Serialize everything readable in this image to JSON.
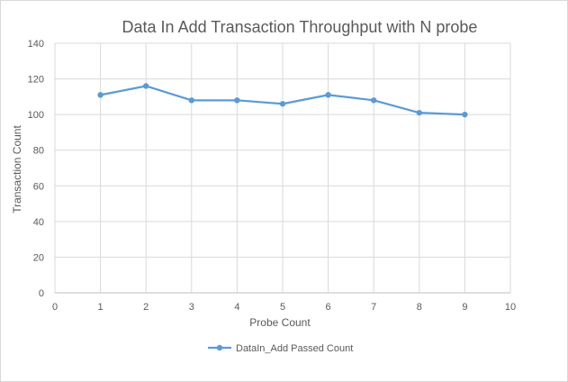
{
  "chart_data": {
    "type": "scatter",
    "title": "Data In Add Transaction Throughput with N probe",
    "xlabel": "Probe Count",
    "ylabel": "Transaction Count",
    "xlim": [
      0,
      10
    ],
    "ylim": [
      0,
      140
    ],
    "x_ticks": [
      0,
      1,
      2,
      3,
      4,
      5,
      6,
      7,
      8,
      9,
      10
    ],
    "y_ticks": [
      0,
      20,
      40,
      60,
      80,
      100,
      120,
      140
    ],
    "grid": true,
    "legend_position": "bottom",
    "series": [
      {
        "name": "DataIn_Add Passed Count",
        "color": "#5b9bd5",
        "marker": "circle",
        "line": "straight",
        "x": [
          1,
          2,
          3,
          4,
          5,
          6,
          7,
          8,
          9
        ],
        "y": [
          111,
          116,
          108,
          108,
          106,
          111,
          108,
          101,
          100
        ]
      }
    ]
  }
}
